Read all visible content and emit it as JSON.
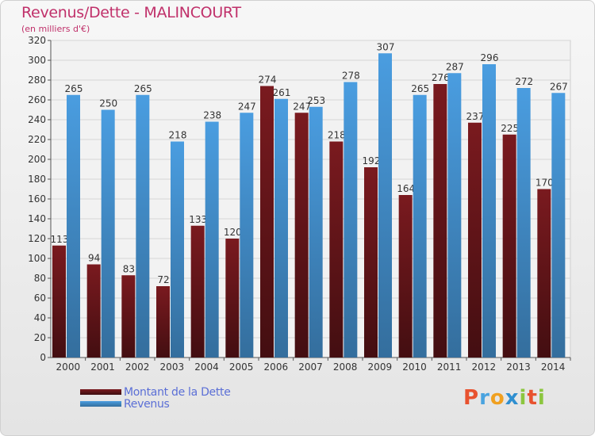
{
  "chart_data": {
    "type": "bar",
    "title": "Revenus/Dette - MALINCOURT",
    "subtitle": "(en milliers d'€)",
    "categories": [
      "2000",
      "2001",
      "2002",
      "2003",
      "2004",
      "2005",
      "2006",
      "2007",
      "2008",
      "2009",
      "2010",
      "2011",
      "2012",
      "2013",
      "2014"
    ],
    "series": [
      {
        "name": "Montant de la Dette",
        "color": "#7a1a1f",
        "values": [
          113,
          94,
          83,
          72,
          133,
          120,
          274,
          247,
          218,
          192,
          164,
          276,
          237,
          225,
          170
        ]
      },
      {
        "name": "Revenus",
        "color": "#4a9de0",
        "values": [
          265,
          250,
          265,
          218,
          238,
          247,
          261,
          253,
          278,
          307,
          265,
          287,
          296,
          272,
          267
        ]
      }
    ],
    "ylim": [
      0,
      320
    ],
    "ytick_step": 20,
    "grid": true
  },
  "brand": {
    "letters": [
      "P",
      "r",
      "o",
      "x",
      "i",
      "t",
      "i"
    ],
    "colors": [
      "#e8522f",
      "#4aa3df",
      "#f0a020",
      "#2f8fd0",
      "#8cc63f",
      "#e8522f",
      "#8cc63f"
    ]
  }
}
